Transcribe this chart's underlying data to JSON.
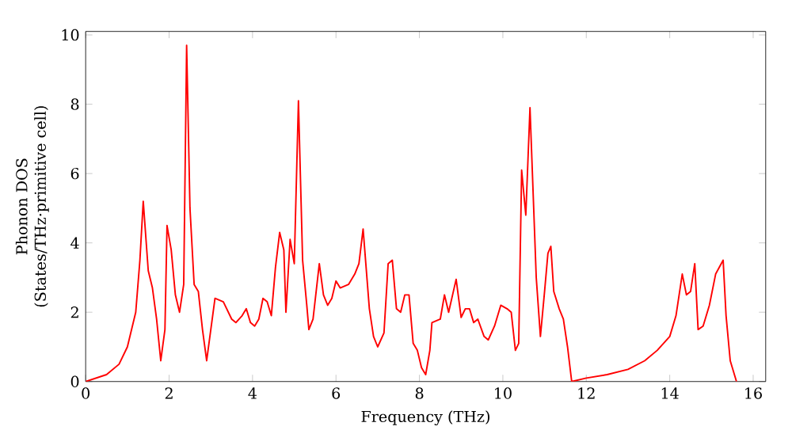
{
  "chart_data": {
    "type": "line",
    "xlabel": "Frequency (THz)",
    "ylabel": "Phonon DOS\n(States/THz·primitive cell)",
    "xlim": [
      0,
      16.3
    ],
    "ylim": [
      0,
      10.1
    ],
    "xticks": [
      0,
      2,
      4,
      6,
      8,
      10,
      12,
      14,
      16
    ],
    "yticks": [
      0,
      2,
      4,
      6,
      8,
      10
    ],
    "marker": "none",
    "line_style": "solid",
    "series": [
      {
        "color": "#ff0000",
        "x": [
          0,
          0.5,
          0.8,
          1.0,
          1.2,
          1.3,
          1.38,
          1.5,
          1.6,
          1.7,
          1.75,
          1.8,
          1.9,
          1.95,
          2.05,
          2.15,
          2.25,
          2.35,
          2.42,
          2.5,
          2.6,
          2.7,
          2.8,
          2.9,
          3.0,
          3.1,
          3.3,
          3.5,
          3.6,
          3.75,
          3.85,
          3.95,
          4.05,
          4.15,
          4.25,
          4.35,
          4.45,
          4.55,
          4.65,
          4.75,
          4.8,
          4.9,
          5.0,
          5.1,
          5.2,
          5.3,
          5.35,
          5.45,
          5.6,
          5.7,
          5.8,
          5.9,
          6.0,
          6.1,
          6.3,
          6.45,
          6.55,
          6.65,
          6.8,
          6.9,
          7.0,
          7.15,
          7.25,
          7.35,
          7.45,
          7.55,
          7.65,
          7.75,
          7.85,
          7.95,
          8.05,
          8.15,
          8.25,
          8.3,
          8.5,
          8.6,
          8.7,
          8.88,
          9.0,
          9.1,
          9.2,
          9.3,
          9.4,
          9.55,
          9.65,
          9.8,
          9.95,
          10.1,
          10.2,
          10.3,
          10.38,
          10.45,
          10.55,
          10.65,
          10.8,
          10.9,
          11.0,
          11.08,
          11.15,
          11.22,
          11.35,
          11.45,
          11.55,
          11.65,
          12.0,
          12.5,
          13.0,
          13.4,
          13.7,
          14.0,
          14.15,
          14.3,
          14.4,
          14.5,
          14.6,
          14.68,
          14.8,
          14.95,
          15.1,
          15.28,
          15.35,
          15.45,
          15.6
        ],
        "values": [
          0,
          0.2,
          0.5,
          1.0,
          2.0,
          3.5,
          5.2,
          3.2,
          2.7,
          1.8,
          1.2,
          0.6,
          1.5,
          4.5,
          3.8,
          2.5,
          2.0,
          2.8,
          9.7,
          5.0,
          2.8,
          2.6,
          1.5,
          0.6,
          1.5,
          2.4,
          2.3,
          1.8,
          1.7,
          1.9,
          2.1,
          1.7,
          1.6,
          1.8,
          2.4,
          2.3,
          1.9,
          3.3,
          4.3,
          3.8,
          2.0,
          4.1,
          3.4,
          8.1,
          3.5,
          2.2,
          1.5,
          1.8,
          3.4,
          2.5,
          2.2,
          2.4,
          2.9,
          2.7,
          2.8,
          3.1,
          3.4,
          4.4,
          2.1,
          1.3,
          1.0,
          1.4,
          3.4,
          3.5,
          2.1,
          2.0,
          2.5,
          2.5,
          1.1,
          0.9,
          0.4,
          0.2,
          0.9,
          1.7,
          1.8,
          2.5,
          2.0,
          2.95,
          1.85,
          2.1,
          2.1,
          1.7,
          1.8,
          1.3,
          1.2,
          1.6,
          2.2,
          2.1,
          2.0,
          0.9,
          1.1,
          6.1,
          4.8,
          7.9,
          3.0,
          1.3,
          2.6,
          3.7,
          3.9,
          2.6,
          2.1,
          1.8,
          1.0,
          0.0,
          0.1,
          0.2,
          0.35,
          0.6,
          0.9,
          1.3,
          1.9,
          3.1,
          2.5,
          2.6,
          3.4,
          1.5,
          1.6,
          2.2,
          3.1,
          3.5,
          1.9,
          0.6,
          0.0
        ]
      }
    ]
  }
}
